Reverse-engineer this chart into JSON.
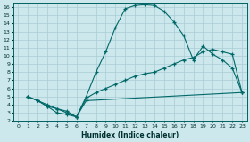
{
  "xlabel": "Humidex (Indice chaleur)",
  "background_color": "#cce8ec",
  "grid_color": "#aaccd4",
  "line_color": "#006868",
  "xlim": [
    -0.5,
    23.5
  ],
  "ylim": [
    2,
    16.5
  ],
  "xticks": [
    0,
    1,
    2,
    3,
    4,
    5,
    6,
    7,
    8,
    9,
    10,
    11,
    12,
    13,
    14,
    15,
    16,
    17,
    18,
    19,
    20,
    21,
    22,
    23
  ],
  "yticks": [
    2,
    3,
    4,
    5,
    6,
    7,
    8,
    9,
    10,
    11,
    12,
    13,
    14,
    15,
    16
  ],
  "line1_x": [
    1,
    2,
    3,
    4,
    5,
    6,
    7,
    8,
    9,
    10,
    11,
    12,
    13,
    14,
    15,
    16,
    17,
    18,
    19,
    20,
    21,
    22,
    23
  ],
  "line1_y": [
    5.0,
    4.5,
    4.0,
    3.5,
    3.2,
    2.5,
    5.0,
    8.0,
    10.5,
    13.5,
    15.8,
    16.2,
    16.3,
    16.2,
    15.5,
    14.2,
    12.5,
    9.5,
    11.2,
    10.2,
    9.5,
    8.5,
    5.5
  ],
  "line2_x": [
    1,
    2,
    3,
    4,
    5,
    6,
    7,
    23
  ],
  "line2_y": [
    5.0,
    4.5,
    3.8,
    3.0,
    2.8,
    2.5,
    4.5,
    5.5
  ],
  "line3_x": [
    1,
    2,
    3,
    4,
    5,
    6,
    7,
    8,
    9,
    10,
    11,
    12,
    13,
    14,
    15,
    16,
    17,
    18,
    19,
    20,
    21,
    22,
    23
  ],
  "line3_y": [
    5.0,
    4.5,
    3.8,
    3.5,
    3.0,
    2.5,
    4.8,
    5.5,
    6.0,
    6.5,
    7.0,
    7.5,
    7.8,
    8.0,
    8.5,
    9.0,
    9.5,
    9.8,
    10.5,
    10.8,
    10.5,
    10.2,
    5.5
  ]
}
